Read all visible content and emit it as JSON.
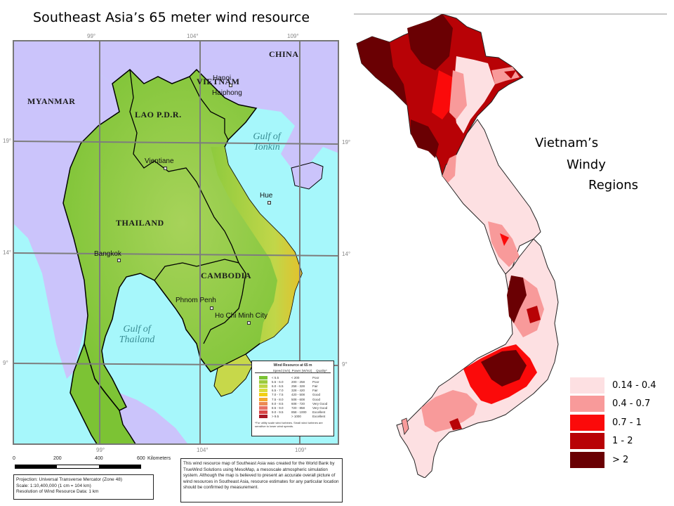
{
  "left_panel": {
    "title": "Southeast Asia’s 65 meter wind resource",
    "longitude_labels": [
      "99°",
      "104°",
      "109°"
    ],
    "latitude_labels": [
      "19°",
      "14°",
      "9°"
    ],
    "countries": [
      "CHINA",
      "MYANMAR",
      "VIETNAM",
      "LAO P.D.R.",
      "THAILAND",
      "CAMBODIA"
    ],
    "cities": [
      "Hanoi",
      "Haiphong",
      "Vientiane",
      "Hue",
      "Bangkok",
      "Phnom Penh",
      "Ho Chi Minh City"
    ],
    "seas": {
      "gulf_of_tonkin": [
        "Gulf of",
        "Tonkin"
      ],
      "gulf_of_thailand": [
        "Gulf of",
        "Thailand"
      ]
    },
    "wind_legend": {
      "title": "Wind Resource at 65 m",
      "headers": [
        "Speed (m/s)",
        "Power (W/m2)",
        "Quality*"
      ],
      "rows": [
        {
          "color": "#7cc334",
          "speed": "< 5.5",
          "power": "< 200",
          "quality": "Poor"
        },
        {
          "color": "#9ccb3c",
          "speed": "5.5 - 6.0",
          "power": "200 - 258",
          "quality": "Poor"
        },
        {
          "color": "#bfd642",
          "speed": "6.0 - 6.5",
          "power": "258 - 328",
          "quality": "Fair"
        },
        {
          "color": "#d9dc3a",
          "speed": "6.5 - 7.0",
          "power": "328 - 420",
          "quality": "Fair"
        },
        {
          "color": "#f2cf12",
          "speed": "7.0 - 7.5",
          "power": "420 - 508",
          "quality": "Good"
        },
        {
          "color": "#f3a92e",
          "speed": "7.5 - 8.0",
          "power": "508 - 608",
          "quality": "Good"
        },
        {
          "color": "#ec8a52",
          "speed": "8.0 - 8.5",
          "power": "608 - 720",
          "quality": "Very Good"
        },
        {
          "color": "#e77265",
          "speed": "8.5 - 9.0",
          "power": "720 - 858",
          "quality": "Very Good"
        },
        {
          "color": "#d94848",
          "speed": "9.0 - 9.5",
          "power": "858 - 1000",
          "quality": "Excellent"
        },
        {
          "color": "#a81826",
          "speed": "> 9.5",
          "power": "> 1000",
          "quality": "Excellent"
        }
      ],
      "note": "*For utility scale wind turbines. Small wind turbines are sensitive to lower wind speeds."
    },
    "scale": {
      "ticks": [
        "0",
        "200",
        "400",
        "600"
      ],
      "unit": "Kilometers"
    },
    "projection_box": [
      "Projection: Universal Transverse Mercator (Zone 48)",
      "Scale: 1:10,400,000 (1 cm = 104 km)",
      "Resolution of Wind Resource Data: 1 km"
    ],
    "credit_text": "This wind resource map of Southeast Asia was created for the World Bank by TrueWind Solutions using MesoMap, a mesoscale atmospheric simulation system. Although the map is believed to present an accurate overall picture of wind resources in Southeast Asia, resource estimates for any particular location should be confirmed by measurement.",
    "colors": {
      "sea": "#a6f7fb",
      "other_land": "#cbc4fb",
      "land_base": "#7cc334"
    }
  },
  "right_panel": {
    "caption": [
      "Vietnam’s",
      "Windy",
      "Regions"
    ],
    "legend": [
      {
        "label": "0.14 - 0.4",
        "color": "#fde0e2"
      },
      {
        "label": "0.4 - 0.7",
        "color": "#f89a9a"
      },
      {
        "label": "0.7 - 1",
        "color": "#fb0a0a"
      },
      {
        "label": "1 - 2",
        "color": "#b80206"
      },
      {
        "label": "> 2",
        "color": "#6a0003"
      }
    ]
  }
}
